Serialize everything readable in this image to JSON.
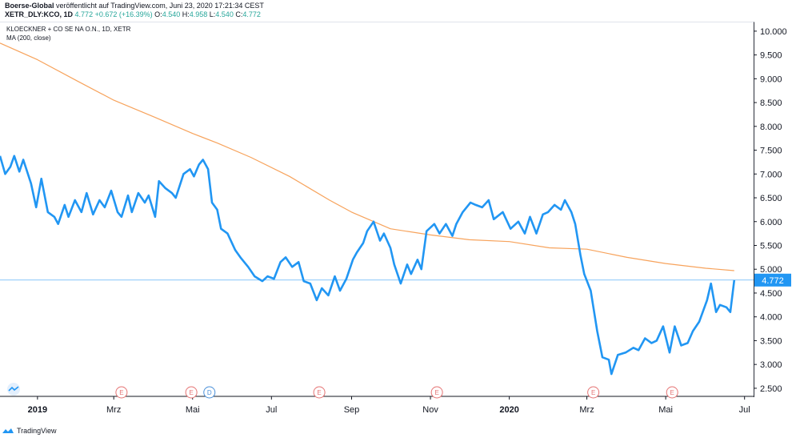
{
  "header": {
    "publisher": "Boerse-Global",
    "published_text": " veröffentlicht auf TradingView.com, Juni 23, 2020 17:21:34 CEST",
    "symbol": "XETR_DLY:KCO, 1D",
    "last": "4.772",
    "change": "+0.672 (+16.39%)",
    "open_label": "O:",
    "open": "4.540",
    "high_label": "H:",
    "high": "4.958",
    "low_label": "L:",
    "low": "4.540",
    "close_label": "C:",
    "close": "4.772"
  },
  "footer": {
    "brand": "TradingView"
  },
  "colors": {
    "price": "#2196f3",
    "ma": "#f7a35c",
    "last_label_bg": "#2196f3",
    "event_earnings": "#e57373",
    "event_dividend": "#4a90d9",
    "axis": "#131722"
  },
  "chart_data": {
    "type": "line",
    "title": "KLOECKNER + CO SE NA O.N., 1D, XETR",
    "ma_label": "MA (200, close)",
    "ylim": [
      2.33,
      10.2
    ],
    "y_ticks": [
      "10.000",
      "9.500",
      "9.000",
      "8.500",
      "8.000",
      "7.500",
      "7.000",
      "6.500",
      "6.000",
      "5.500",
      "5.000",
      "4.500",
      "4.000",
      "3.500",
      "3.000",
      "2.500"
    ],
    "y_tick_values": [
      10.0,
      9.5,
      9.0,
      8.5,
      8.0,
      7.5,
      7.0,
      6.5,
      6.0,
      5.5,
      5.0,
      4.5,
      4.0,
      3.5,
      3.0,
      2.5
    ],
    "x_range": [
      "2018-12-03",
      "2020-07-08"
    ],
    "x_ticks": [
      {
        "label": "2019",
        "date": "2019-01-01",
        "year": true
      },
      {
        "label": "Mrz",
        "date": "2019-03-01",
        "year": false
      },
      {
        "label": "Mai",
        "date": "2019-05-01",
        "year": false
      },
      {
        "label": "Jul",
        "date": "2019-07-01",
        "year": false
      },
      {
        "label": "Sep",
        "date": "2019-09-01",
        "year": false
      },
      {
        "label": "Nov",
        "date": "2019-11-01",
        "year": false
      },
      {
        "label": "2020",
        "date": "2020-01-01",
        "year": true
      },
      {
        "label": "Mrz",
        "date": "2020-03-01",
        "year": false
      },
      {
        "label": "Mai",
        "date": "2020-05-01",
        "year": false
      },
      {
        "label": "Jul",
        "date": "2020-07-01",
        "year": false
      }
    ],
    "last_value_label": "4.772",
    "last_value": 4.772,
    "series": [
      {
        "name": "KLOECKNER + CO SE NA O.N., 1D, XETR",
        "points": [
          [
            "2018-12-03",
            7.38
          ],
          [
            "2018-12-07",
            7.0
          ],
          [
            "2018-12-11",
            7.15
          ],
          [
            "2018-12-14",
            7.38
          ],
          [
            "2018-12-18",
            7.05
          ],
          [
            "2018-12-21",
            7.3
          ],
          [
            "2018-12-27",
            6.8
          ],
          [
            "2018-12-31",
            6.3
          ],
          [
            "2019-01-04",
            6.9
          ],
          [
            "2019-01-09",
            6.2
          ],
          [
            "2019-01-14",
            6.1
          ],
          [
            "2019-01-17",
            5.95
          ],
          [
            "2019-01-22",
            6.35
          ],
          [
            "2019-01-25",
            6.1
          ],
          [
            "2019-01-30",
            6.45
          ],
          [
            "2019-02-04",
            6.2
          ],
          [
            "2019-02-08",
            6.6
          ],
          [
            "2019-02-13",
            6.15
          ],
          [
            "2019-02-18",
            6.45
          ],
          [
            "2019-02-22",
            6.3
          ],
          [
            "2019-02-27",
            6.65
          ],
          [
            "2019-03-04",
            6.2
          ],
          [
            "2019-03-07",
            6.1
          ],
          [
            "2019-03-12",
            6.55
          ],
          [
            "2019-03-15",
            6.2
          ],
          [
            "2019-03-20",
            6.6
          ],
          [
            "2019-03-25",
            6.4
          ],
          [
            "2019-03-28",
            6.55
          ],
          [
            "2019-04-02",
            6.1
          ],
          [
            "2019-04-05",
            6.85
          ],
          [
            "2019-04-10",
            6.7
          ],
          [
            "2019-04-15",
            6.6
          ],
          [
            "2019-04-18",
            6.5
          ],
          [
            "2019-04-24",
            7.0
          ],
          [
            "2019-04-29",
            7.1
          ],
          [
            "2019-05-02",
            6.95
          ],
          [
            "2019-05-06",
            7.2
          ],
          [
            "2019-05-09",
            7.3
          ],
          [
            "2019-05-13",
            7.1
          ],
          [
            "2019-05-16",
            6.4
          ],
          [
            "2019-05-20",
            6.25
          ],
          [
            "2019-05-23",
            5.85
          ],
          [
            "2019-05-28",
            5.75
          ],
          [
            "2019-06-03",
            5.4
          ],
          [
            "2019-06-07",
            5.25
          ],
          [
            "2019-06-13",
            5.05
          ],
          [
            "2019-06-18",
            4.85
          ],
          [
            "2019-06-24",
            4.75
          ],
          [
            "2019-06-28",
            4.85
          ],
          [
            "2019-07-03",
            4.8
          ],
          [
            "2019-07-08",
            5.15
          ],
          [
            "2019-07-12",
            5.25
          ],
          [
            "2019-07-17",
            5.05
          ],
          [
            "2019-07-22",
            5.15
          ],
          [
            "2019-07-26",
            4.75
          ],
          [
            "2019-07-31",
            4.7
          ],
          [
            "2019-08-05",
            4.35
          ],
          [
            "2019-08-09",
            4.6
          ],
          [
            "2019-08-14",
            4.45
          ],
          [
            "2019-08-19",
            4.85
          ],
          [
            "2019-08-23",
            4.55
          ],
          [
            "2019-08-28",
            4.8
          ],
          [
            "2019-09-02",
            5.2
          ],
          [
            "2019-09-05",
            5.35
          ],
          [
            "2019-09-10",
            5.55
          ],
          [
            "2019-09-13",
            5.8
          ],
          [
            "2019-09-18",
            6.0
          ],
          [
            "2019-09-23",
            5.6
          ],
          [
            "2019-09-26",
            5.75
          ],
          [
            "2019-10-01",
            5.45
          ],
          [
            "2019-10-04",
            5.1
          ],
          [
            "2019-10-09",
            4.7
          ],
          [
            "2019-10-14",
            5.1
          ],
          [
            "2019-10-17",
            4.9
          ],
          [
            "2019-10-22",
            5.2
          ],
          [
            "2019-10-25",
            5.0
          ],
          [
            "2019-10-29",
            5.8
          ],
          [
            "2019-11-04",
            5.95
          ],
          [
            "2019-11-08",
            5.75
          ],
          [
            "2019-11-13",
            5.95
          ],
          [
            "2019-11-18",
            5.7
          ],
          [
            "2019-11-21",
            5.95
          ],
          [
            "2019-11-26",
            6.2
          ],
          [
            "2019-12-02",
            6.4
          ],
          [
            "2019-12-06",
            6.35
          ],
          [
            "2019-12-11",
            6.3
          ],
          [
            "2019-12-16",
            6.45
          ],
          [
            "2019-12-20",
            6.05
          ],
          [
            "2019-12-27",
            6.2
          ],
          [
            "2020-01-02",
            5.85
          ],
          [
            "2020-01-08",
            6.0
          ],
          [
            "2020-01-13",
            5.75
          ],
          [
            "2020-01-17",
            6.1
          ],
          [
            "2020-01-22",
            5.75
          ],
          [
            "2020-01-27",
            6.15
          ],
          [
            "2020-01-31",
            6.2
          ],
          [
            "2020-02-05",
            6.35
          ],
          [
            "2020-02-10",
            6.25
          ],
          [
            "2020-02-13",
            6.45
          ],
          [
            "2020-02-18",
            6.2
          ],
          [
            "2020-02-21",
            5.95
          ],
          [
            "2020-02-25",
            5.3
          ],
          [
            "2020-02-28",
            4.9
          ],
          [
            "2020-03-04",
            4.55
          ],
          [
            "2020-03-09",
            3.7
          ],
          [
            "2020-03-13",
            3.15
          ],
          [
            "2020-03-18",
            3.1
          ],
          [
            "2020-03-20",
            2.8
          ],
          [
            "2020-03-25",
            3.2
          ],
          [
            "2020-03-31",
            3.25
          ],
          [
            "2020-04-06",
            3.35
          ],
          [
            "2020-04-10",
            3.3
          ],
          [
            "2020-04-15",
            3.55
          ],
          [
            "2020-04-20",
            3.45
          ],
          [
            "2020-04-24",
            3.5
          ],
          [
            "2020-04-29",
            3.8
          ],
          [
            "2020-05-04",
            3.25
          ],
          [
            "2020-05-08",
            3.8
          ],
          [
            "2020-05-13",
            3.4
          ],
          [
            "2020-05-18",
            3.45
          ],
          [
            "2020-05-22",
            3.7
          ],
          [
            "2020-05-27",
            3.9
          ],
          [
            "2020-06-02",
            4.35
          ],
          [
            "2020-06-05",
            4.7
          ],
          [
            "2020-06-09",
            4.1
          ],
          [
            "2020-06-12",
            4.25
          ],
          [
            "2020-06-17",
            4.2
          ],
          [
            "2020-06-20",
            4.1
          ],
          [
            "2020-06-23",
            4.772
          ]
        ]
      },
      {
        "name": "MA (200, close)",
        "points": [
          [
            "2018-12-03",
            9.75
          ],
          [
            "2019-01-01",
            9.4
          ],
          [
            "2019-02-01",
            8.95
          ],
          [
            "2019-03-01",
            8.55
          ],
          [
            "2019-04-01",
            8.2
          ],
          [
            "2019-05-01",
            7.85
          ],
          [
            "2019-05-20",
            7.65
          ],
          [
            "2019-06-15",
            7.35
          ],
          [
            "2019-07-15",
            6.95
          ],
          [
            "2019-08-15",
            6.45
          ],
          [
            "2019-09-01",
            6.2
          ],
          [
            "2019-10-01",
            5.85
          ],
          [
            "2019-11-01",
            5.72
          ],
          [
            "2019-12-01",
            5.62
          ],
          [
            "2020-01-01",
            5.58
          ],
          [
            "2020-02-01",
            5.45
          ],
          [
            "2020-03-01",
            5.42
          ],
          [
            "2020-04-01",
            5.25
          ],
          [
            "2020-05-01",
            5.12
          ],
          [
            "2020-06-01",
            5.02
          ],
          [
            "2020-06-23",
            4.97
          ]
        ]
      }
    ],
    "events": [
      {
        "type": "E",
        "date": "2019-03-07"
      },
      {
        "type": "E",
        "date": "2019-04-30"
      },
      {
        "type": "D",
        "date": "2019-05-14"
      },
      {
        "type": "E",
        "date": "2019-08-07"
      },
      {
        "type": "E",
        "date": "2019-11-06"
      },
      {
        "type": "E",
        "date": "2020-03-06"
      },
      {
        "type": "E",
        "date": "2020-05-06"
      }
    ]
  }
}
